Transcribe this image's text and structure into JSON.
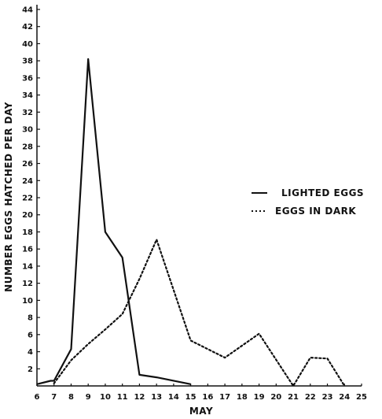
{
  "chart_data": {
    "type": "line",
    "title": "",
    "xlabel": "MAY",
    "ylabel": "NUMBER EGGS HATCHED PER DAY",
    "xlim": [
      6,
      25
    ],
    "ylim": [
      0,
      44
    ],
    "x_ticks": [
      "6",
      "7",
      "8",
      "9",
      "10",
      "11",
      "12",
      "13",
      "14",
      "15",
      "16",
      "17",
      "18",
      "19",
      "20",
      "21",
      "22",
      "23",
      "24",
      "25"
    ],
    "y_ticks": [
      "2",
      "4",
      "6",
      "8",
      "10",
      "12",
      "14",
      "16",
      "18",
      "20",
      "22",
      "24",
      "26",
      "28",
      "30",
      "32",
      "34",
      "36",
      "38",
      "40",
      "42",
      "44"
    ],
    "grid": false,
    "legend_position": "right",
    "series": [
      {
        "name": "LIGHTED EGGS",
        "style": "solid",
        "color": "#111111",
        "points": [
          [
            6,
            0.2
          ],
          [
            6.8,
            0.6
          ],
          [
            7,
            0.6
          ],
          [
            8,
            4.3
          ],
          [
            9,
            38.2
          ],
          [
            10,
            18
          ],
          [
            11,
            15
          ],
          [
            12,
            1.3
          ],
          [
            13,
            1
          ],
          [
            15,
            0.2
          ]
        ]
      },
      {
        "name": "EGGS IN DARK",
        "style": "dotted",
        "color": "#111111",
        "points": [
          [
            7,
            0.3
          ],
          [
            8,
            3
          ],
          [
            9,
            4.9
          ],
          [
            10,
            6.6
          ],
          [
            11,
            8.4
          ],
          [
            12,
            12.5
          ],
          [
            13,
            17.1
          ],
          [
            15,
            5.3
          ],
          [
            17,
            3.3
          ],
          [
            19,
            6.1
          ],
          [
            21,
            0
          ],
          [
            22,
            3.3
          ],
          [
            23,
            3.2
          ],
          [
            24,
            0
          ]
        ]
      }
    ]
  }
}
